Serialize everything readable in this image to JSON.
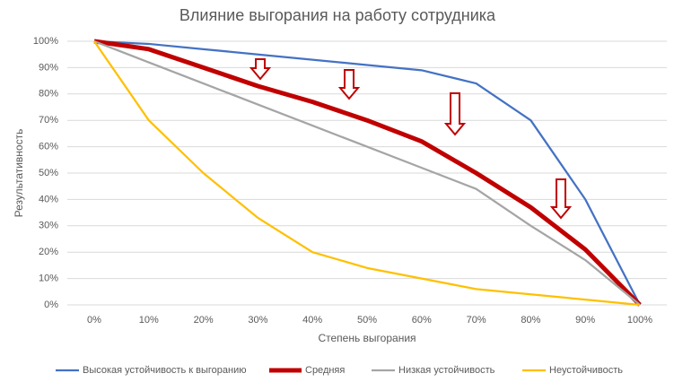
{
  "chart_data": {
    "type": "line",
    "title": "Влияние выгорания на работу сотрудника",
    "x_label": "Степень выгорания",
    "y_label": "Результативность",
    "x": [
      0,
      10,
      20,
      30,
      40,
      50,
      60,
      70,
      80,
      90,
      100
    ],
    "xlim": [
      0,
      100
    ],
    "xticks": [
      {
        "value": 0,
        "label": "0%"
      },
      {
        "value": 10,
        "label": "10%"
      },
      {
        "value": 20,
        "label": "20%"
      },
      {
        "value": 30,
        "label": "30%"
      },
      {
        "value": 40,
        "label": "40%"
      },
      {
        "value": 50,
        "label": "50%"
      },
      {
        "value": 60,
        "label": "60%"
      },
      {
        "value": 70,
        "label": "70%"
      },
      {
        "value": 80,
        "label": "80%"
      },
      {
        "value": 90,
        "label": "90%"
      },
      {
        "value": 100,
        "label": "100%"
      }
    ],
    "ylim": [
      0,
      100
    ],
    "yticks": [
      {
        "value": 0,
        "label": "0%"
      },
      {
        "value": 10,
        "label": "10%"
      },
      {
        "value": 20,
        "label": "20%"
      },
      {
        "value": 30,
        "label": "30%"
      },
      {
        "value": 40,
        "label": "40%"
      },
      {
        "value": 50,
        "label": "50%"
      },
      {
        "value": 60,
        "label": "60%"
      },
      {
        "value": 70,
        "label": "70%"
      },
      {
        "value": 80,
        "label": "80%"
      },
      {
        "value": 90,
        "label": "90%"
      },
      {
        "value": 100,
        "label": "100%"
      }
    ],
    "grid": true,
    "legend": "bottom",
    "series": [
      {
        "name": "Высокая устойчивость к выгоранию",
        "color": "#4472c4",
        "line_width": 2.25,
        "values": [
          100,
          99,
          97,
          95,
          93,
          91,
          89,
          84,
          70,
          40,
          0
        ]
      },
      {
        "name": "Средняя",
        "color": "#c00000",
        "line_width": 5,
        "values": [
          100,
          97,
          90,
          83,
          77,
          70,
          62,
          50,
          37,
          21,
          0
        ]
      },
      {
        "name": "Низкая устойчивость",
        "color": "#a5a5a5",
        "line_width": 2.25,
        "values": [
          100,
          92,
          84,
          76,
          68,
          60,
          52,
          44,
          30,
          17,
          0
        ]
      },
      {
        "name": "Неустойчивость",
        "color": "#ffc000",
        "line_width": 2.25,
        "values": [
          100,
          70,
          50,
          33,
          20,
          14,
          10,
          6,
          4,
          2,
          0
        ]
      }
    ]
  }
}
